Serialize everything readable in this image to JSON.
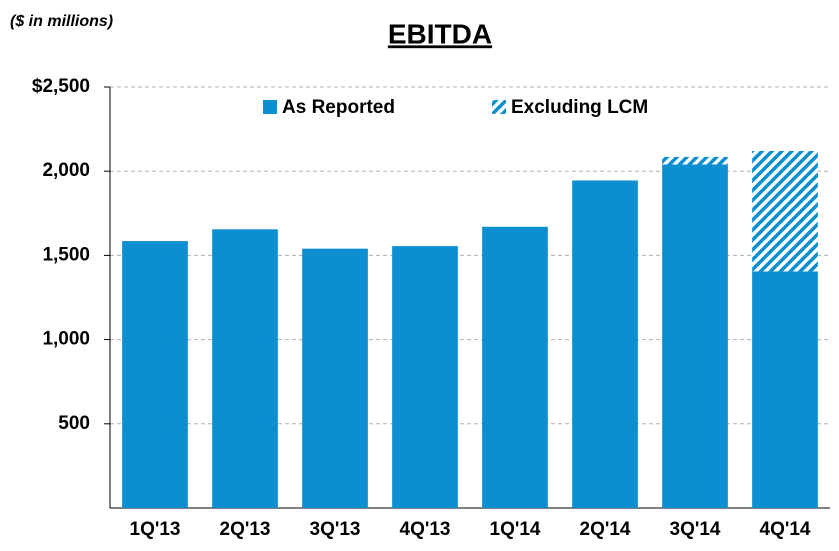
{
  "chart_data": {
    "type": "stacked_bar",
    "title": "EBITDA",
    "subtitle": "($ in millions)",
    "categories": [
      "1Q'13",
      "2Q'13",
      "3Q'13",
      "4Q'13",
      "1Q'14",
      "2Q'14",
      "3Q'14",
      "4Q'14"
    ],
    "series": [
      {
        "name": "As Reported",
        "color": "#0b8fd0",
        "pattern": "solid",
        "values": [
          1585,
          1655,
          1540,
          1555,
          1670,
          1945,
          2040,
          1405
        ]
      },
      {
        "name": "Excluding LCM",
        "color": "#0b8fd0",
        "pattern": "hatch",
        "values": [
          null,
          null,
          null,
          null,
          null,
          null,
          45,
          715
        ]
      }
    ],
    "ylim": [
      0,
      2500
    ],
    "yticks": [
      500,
      {
        "value": 1000,
        "label": "1,000"
      },
      {
        "value": 1500,
        "label": "1,500"
      },
      {
        "value": 2000,
        "label": "2,000"
      },
      {
        "value": 2500,
        "label": "$2,500"
      }
    ],
    "grid": true
  }
}
